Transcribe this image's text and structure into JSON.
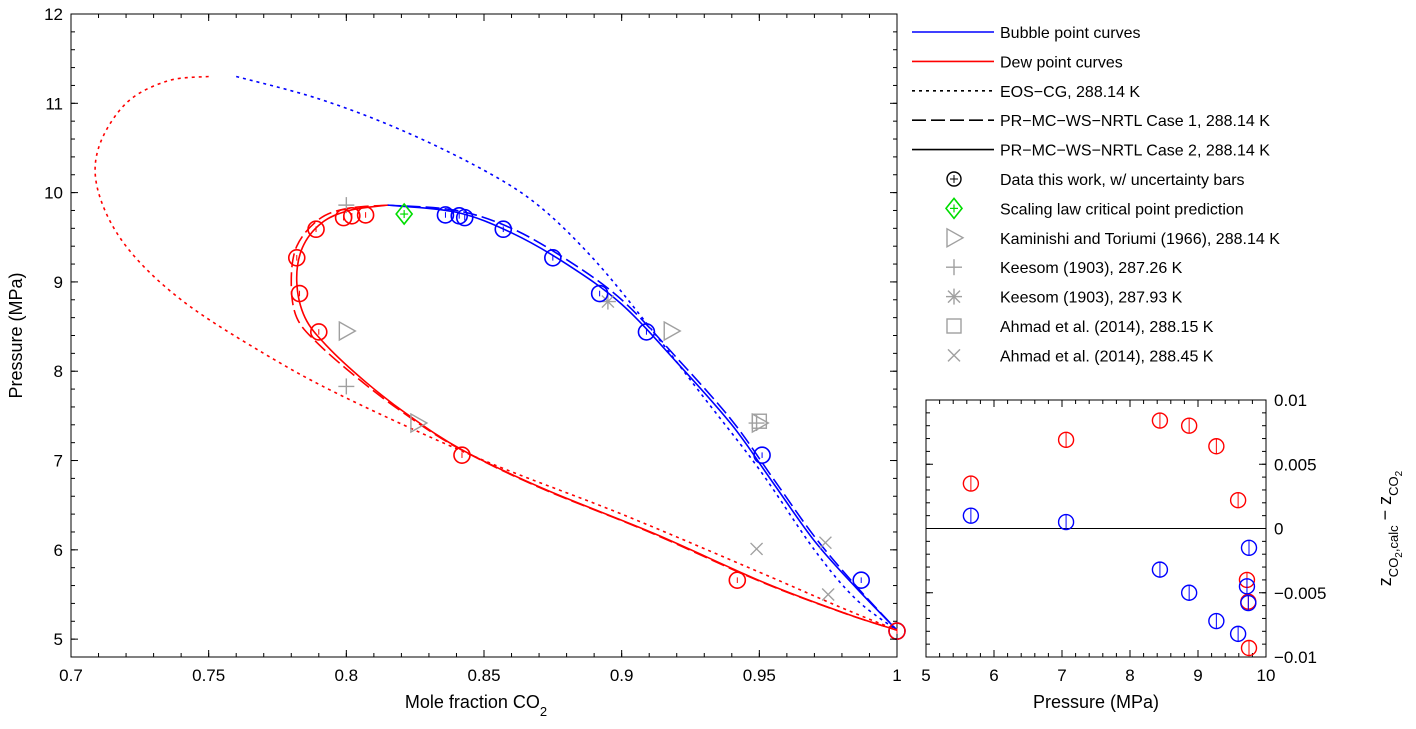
{
  "chart_data": [
    {
      "type": "line",
      "xlabel": {
        "main": "Mole fraction CO",
        "sub": "2"
      },
      "ylabel": "Pressure (MPa)",
      "xlim": [
        0.7,
        1.0
      ],
      "ylim": [
        4.8,
        12
      ],
      "xticks": [
        0.7,
        0.75,
        0.8,
        0.85,
        0.9,
        0.95,
        1
      ],
      "xtick_labels": [
        "0.7",
        "0.75",
        "0.8",
        "0.85",
        "0.9",
        "0.95",
        "1"
      ],
      "yticks": [
        5,
        6,
        7,
        8,
        9,
        10,
        11,
        12
      ],
      "ytick_labels": [
        "5",
        "6",
        "7",
        "8",
        "9",
        "10",
        "11",
        "12"
      ],
      "colors": {
        "bubble": "#0000ff",
        "dew": "#ff0000",
        "literature": "#a0a0a0",
        "scaling": "#00dd00"
      },
      "legend": {
        "position": "outside-right",
        "entries": [
          {
            "label": "Bubble point curves",
            "symbol": "line-solid",
            "color": "#0000ff"
          },
          {
            "label": "Dew point curves",
            "symbol": "line-solid",
            "color": "#ff0000"
          },
          {
            "label": "EOS−CG, 288.14 K",
            "symbol": "line-dotted",
            "color": "#000000"
          },
          {
            "label": "PR−MC−WS−NRTL Case 1, 288.14 K",
            "symbol": "line-dashed",
            "color": "#000000"
          },
          {
            "label": "PR−MC−WS−NRTL Case 2, 288.14 K",
            "symbol": "line-solid",
            "color": "#000000"
          },
          {
            "label": "Data this work, w/ uncertainty bars",
            "symbol": "circle-cross",
            "color": "#000000"
          },
          {
            "label": "Scaling law critical point prediction",
            "symbol": "diamond-cross",
            "color": "#00dd00"
          },
          {
            "label": "Kaminishi and Toriumi (1966), 288.14 K",
            "symbol": "triangle",
            "color": "#a0a0a0"
          },
          {
            "label": "Keesom (1903), 287.26 K",
            "symbol": "plus",
            "color": "#a0a0a0"
          },
          {
            "label": "Keesom (1903), 287.93 K",
            "symbol": "asterisk",
            "color": "#a0a0a0"
          },
          {
            "label": "Ahmad et al. (2014), 288.15 K",
            "symbol": "square",
            "color": "#a0a0a0"
          },
          {
            "label": "Ahmad et al. (2014), 288.45 K",
            "symbol": "x",
            "color": "#a0a0a0"
          }
        ]
      },
      "series": [
        {
          "kind": "bubble-EOS-CG",
          "style": "dotted",
          "color": "#0000ff",
          "points": [
            [
              0.76,
              11.3
            ],
            [
              0.79,
              11.05
            ],
            [
              0.82,
              10.7
            ],
            [
              0.85,
              10.25
            ],
            [
              0.87,
              9.85
            ],
            [
              0.89,
              9.25
            ],
            [
              0.91,
              8.5
            ],
            [
              0.93,
              7.7
            ],
            [
              0.95,
              6.9
            ],
            [
              0.97,
              6.0
            ],
            [
              0.985,
              5.45
            ],
            [
              1.0,
              5.1
            ]
          ]
        },
        {
          "kind": "bubble-case1",
          "style": "dashed",
          "color": "#0000ff",
          "points": [
            [
              0.815,
              9.86
            ],
            [
              0.84,
              9.8
            ],
            [
              0.86,
              9.6
            ],
            [
              0.88,
              9.25
            ],
            [
              0.9,
              8.8
            ],
            [
              0.92,
              8.15
            ],
            [
              0.94,
              7.45
            ],
            [
              0.955,
              6.8
            ],
            [
              0.97,
              6.15
            ],
            [
              0.985,
              5.6
            ],
            [
              1.0,
              5.1
            ]
          ]
        },
        {
          "kind": "bubble-case2",
          "style": "solid",
          "color": "#0000ff",
          "points": [
            [
              0.815,
              9.86
            ],
            [
              0.84,
              9.78
            ],
            [
              0.86,
              9.55
            ],
            [
              0.88,
              9.2
            ],
            [
              0.9,
              8.75
            ],
            [
              0.92,
              8.1
            ],
            [
              0.94,
              7.4
            ],
            [
              0.955,
              6.75
            ],
            [
              0.97,
              6.1
            ],
            [
              0.985,
              5.58
            ],
            [
              1.0,
              5.1
            ]
          ]
        },
        {
          "kind": "dew-EOS-CG",
          "style": "dotted",
          "color": "#ff0000",
          "points": [
            [
              0.75,
              11.3
            ],
            [
              0.735,
              11.25
            ],
            [
              0.72,
              11.0
            ],
            [
              0.71,
              10.5
            ],
            [
              0.71,
              10.0
            ],
            [
              0.72,
              9.4
            ],
            [
              0.74,
              8.8
            ],
            [
              0.77,
              8.2
            ],
            [
              0.8,
              7.7
            ],
            [
              0.85,
              7.0
            ],
            [
              0.9,
              6.4
            ],
            [
              0.95,
              5.75
            ],
            [
              0.98,
              5.35
            ],
            [
              1.0,
              5.1
            ]
          ]
        },
        {
          "kind": "dew-case1",
          "style": "dashed",
          "color": "#ff0000",
          "points": [
            [
              0.815,
              9.86
            ],
            [
              0.8,
              9.82
            ],
            [
              0.79,
              9.7
            ],
            [
              0.782,
              9.4
            ],
            [
              0.78,
              9.0
            ],
            [
              0.782,
              8.6
            ],
            [
              0.79,
              8.3
            ],
            [
              0.805,
              7.9
            ],
            [
              0.82,
              7.55
            ],
            [
              0.84,
              7.15
            ],
            [
              0.87,
              6.7
            ],
            [
              0.91,
              6.2
            ],
            [
              0.95,
              5.65
            ],
            [
              0.98,
              5.3
            ],
            [
              1.0,
              5.1
            ]
          ]
        },
        {
          "kind": "dew-case2",
          "style": "solid",
          "color": "#ff0000",
          "points": [
            [
              0.815,
              9.86
            ],
            [
              0.801,
              9.8
            ],
            [
              0.791,
              9.66
            ],
            [
              0.784,
              9.38
            ],
            [
              0.782,
              9.0
            ],
            [
              0.785,
              8.6
            ],
            [
              0.793,
              8.28
            ],
            [
              0.807,
              7.88
            ],
            [
              0.822,
              7.52
            ],
            [
              0.842,
              7.12
            ],
            [
              0.872,
              6.68
            ],
            [
              0.912,
              6.18
            ],
            [
              0.952,
              5.63
            ],
            [
              0.982,
              5.28
            ],
            [
              1.0,
              5.1
            ]
          ]
        }
      ],
      "data_bubble": [
        [
          0.836,
          9.75
        ],
        [
          0.841,
          9.74
        ],
        [
          0.843,
          9.72
        ],
        [
          0.857,
          9.59
        ],
        [
          0.875,
          9.27
        ],
        [
          0.892,
          8.87
        ],
        [
          0.909,
          8.44
        ],
        [
          0.951,
          7.06
        ],
        [
          0.987,
          5.66
        ],
        [
          1.0,
          5.09
        ]
      ],
      "data_dew": [
        [
          0.782,
          9.27
        ],
        [
          0.783,
          8.87
        ],
        [
          0.789,
          9.59
        ],
        [
          0.79,
          8.44
        ],
        [
          0.799,
          9.72
        ],
        [
          0.802,
          9.74
        ],
        [
          0.807,
          9.75
        ],
        [
          0.842,
          7.06
        ],
        [
          0.942,
          5.66
        ],
        [
          1.0,
          5.09
        ]
      ],
      "scaling_critical_point": [
        0.821,
        9.76
      ],
      "kaminishi": [
        [
          0.8,
          8.45
        ],
        [
          0.826,
          7.42
        ],
        [
          0.918,
          8.45
        ],
        [
          0.95,
          7.42
        ]
      ],
      "keesom_28726": [
        [
          0.8,
          9.86
        ],
        [
          0.8,
          7.83
        ],
        [
          0.949,
          7.42
        ]
      ],
      "keesom_28793": [
        [
          0.895,
          8.78
        ]
      ],
      "ahmad_28815": [
        [
          0.95,
          7.44
        ]
      ],
      "ahmad_28845": [
        [
          0.949,
          6.01
        ],
        [
          0.974,
          6.08
        ],
        [
          0.975,
          5.5
        ]
      ]
    },
    {
      "type": "scatter",
      "xlabel": "Pressure (MPa)",
      "ylabel": {
        "z": "z",
        "sub1": "CO",
        "sub2": "2",
        "calc": ",calc",
        "minus": " − ",
        "z2": "z",
        "sub3": "CO",
        "sub4": "2"
      },
      "xlim": [
        5,
        10
      ],
      "ylim": [
        -0.01,
        0.01
      ],
      "xticks": [
        5,
        6,
        7,
        8,
        9,
        10
      ],
      "xtick_labels": [
        "5",
        "6",
        "7",
        "8",
        "9",
        "10"
      ],
      "yticks": [
        -0.01,
        -0.005,
        0,
        0.005,
        0.01
      ],
      "ytick_labels": [
        "−0.01",
        "−0.005",
        "0",
        "0.005",
        "0.01"
      ],
      "zero_line": true,
      "series": [
        {
          "name": "dew residuals",
          "color": "#ff0000",
          "points": [
            [
              5.66,
              0.0035
            ],
            [
              7.06,
              0.0069
            ],
            [
              8.44,
              0.0084
            ],
            [
              8.87,
              0.008
            ],
            [
              9.27,
              0.0064
            ],
            [
              9.59,
              0.0022
            ],
            [
              9.72,
              -0.004
            ],
            [
              9.74,
              -0.0057
            ],
            [
              9.75,
              -0.0093
            ]
          ]
        },
        {
          "name": "bubble residuals",
          "color": "#0000ff",
          "points": [
            [
              5.66,
              0.001
            ],
            [
              7.06,
              0.0005
            ],
            [
              8.44,
              -0.0032
            ],
            [
              8.87,
              -0.005
            ],
            [
              9.27,
              -0.0072
            ],
            [
              9.59,
              -0.0082
            ],
            [
              9.72,
              -0.0045
            ],
            [
              9.74,
              -0.0058
            ],
            [
              9.75,
              -0.0015
            ]
          ]
        }
      ]
    }
  ]
}
